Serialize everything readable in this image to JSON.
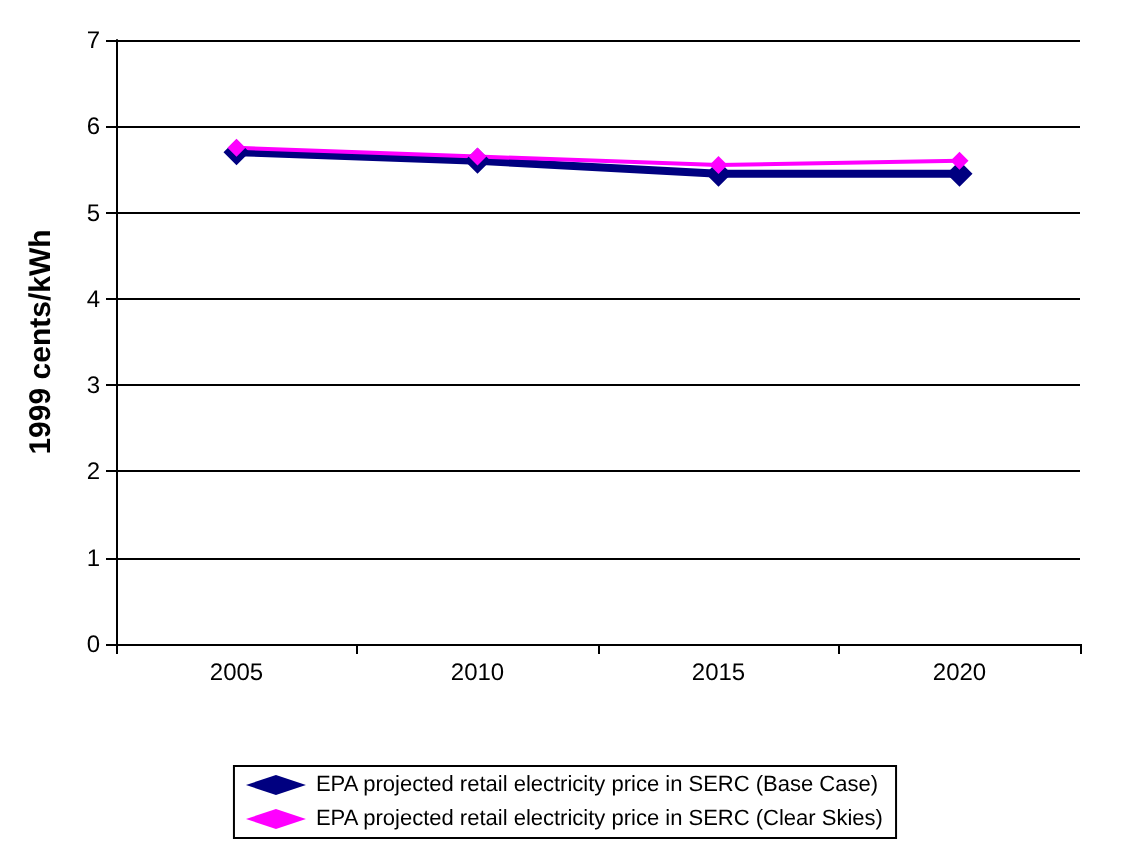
{
  "chart_data": {
    "type": "line",
    "ylabel": "1999 cents/kWh",
    "categories": [
      "2005",
      "2010",
      "2015",
      "2020"
    ],
    "series": [
      {
        "name": "EPA projected retail electricity price in SERC (Base Case)",
        "color": "#000080",
        "values": [
          5.7,
          5.6,
          5.45,
          5.45
        ]
      },
      {
        "name": "EPA projected retail electricity price in SERC (Clear Skies)",
        "color": "#ff00ff",
        "values": [
          5.75,
          5.65,
          5.55,
          5.6
        ]
      }
    ],
    "ylim": [
      0,
      7
    ],
    "yticks": [
      0,
      1,
      2,
      3,
      4,
      5,
      6,
      7
    ],
    "grid": "y",
    "legend": "bottom",
    "marker": "diamond",
    "line_style": "solid"
  }
}
